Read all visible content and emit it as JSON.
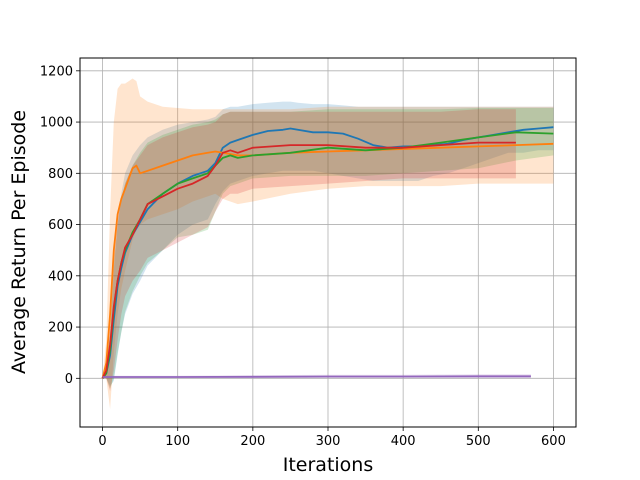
{
  "chart_data": {
    "type": "line",
    "title": "",
    "xlabel": "Iterations",
    "ylabel": "Average Return Per Episode",
    "xlim": [
      -30,
      630
    ],
    "ylim": [
      -190,
      1250
    ],
    "xticks": [
      0,
      100,
      200,
      300,
      400,
      500,
      600
    ],
    "yticks": [
      0,
      200,
      400,
      600,
      800,
      1000,
      1200
    ],
    "grid": true,
    "legend": "none",
    "series": [
      {
        "color": "#1f77b4",
        "x": [
          0,
          5,
          10,
          15,
          20,
          25,
          30,
          40,
          50,
          60,
          80,
          100,
          120,
          140,
          150,
          160,
          170,
          180,
          200,
          220,
          240,
          250,
          260,
          280,
          300,
          320,
          340,
          360,
          380,
          400,
          420,
          440,
          460,
          480,
          500,
          520,
          540,
          560,
          580,
          600
        ],
        "y": [
          0,
          20,
          90,
          230,
          360,
          430,
          490,
          560,
          610,
          660,
          720,
          760,
          790,
          810,
          840,
          900,
          920,
          930,
          950,
          965,
          970,
          975,
          970,
          960,
          960,
          955,
          935,
          910,
          900,
          905,
          905,
          910,
          915,
          930,
          940,
          950,
          960,
          970,
          975,
          980
        ],
        "lower": [
          0,
          0,
          -30,
          -10,
          90,
          180,
          250,
          330,
          380,
          440,
          500,
          560,
          600,
          620,
          680,
          730,
          760,
          770,
          790,
          800,
          810,
          810,
          810,
          810,
          800,
          790,
          780,
          770,
          770,
          770,
          770,
          790,
          800,
          820,
          840,
          860,
          880,
          880,
          890,
          890
        ],
        "upper": [
          0,
          50,
          170,
          420,
          600,
          720,
          800,
          870,
          910,
          940,
          970,
          990,
          1000,
          1010,
          1020,
          1050,
          1060,
          1060,
          1070,
          1075,
          1080,
          1080,
          1075,
          1070,
          1070,
          1065,
          1060,
          1060,
          1060,
          1060,
          1060,
          1060,
          1060,
          1060,
          1060,
          1060,
          1060,
          1060,
          1060,
          1060
        ]
      },
      {
        "color": "#ff7f0e",
        "x": [
          0,
          5,
          10,
          15,
          20,
          25,
          30,
          35,
          40,
          45,
          50,
          60,
          80,
          100,
          120,
          140,
          150,
          160,
          180,
          200,
          250,
          300,
          350,
          400,
          450,
          500,
          550,
          600
        ],
        "y": [
          0,
          60,
          250,
          500,
          640,
          700,
          740,
          780,
          820,
          830,
          800,
          810,
          830,
          850,
          870,
          880,
          885,
          880,
          870,
          870,
          880,
          885,
          890,
          895,
          900,
          905,
          910,
          915
        ],
        "lower": [
          0,
          0,
          -120,
          100,
          250,
          350,
          420,
          480,
          540,
          580,
          600,
          620,
          640,
          660,
          690,
          710,
          720,
          700,
          680,
          690,
          720,
          740,
          750,
          750,
          750,
          760,
          760,
          760
        ],
        "upper": [
          0,
          150,
          650,
          1000,
          1130,
          1150,
          1150,
          1160,
          1170,
          1160,
          1100,
          1080,
          1060,
          1055,
          1050,
          1050,
          1050,
          1050,
          1050,
          1050,
          1050,
          1060,
          1060,
          1060,
          1060,
          1060,
          1060,
          1060
        ]
      },
      {
        "color": "#2ca02c",
        "x": [
          0,
          5,
          10,
          15,
          20,
          25,
          30,
          40,
          50,
          60,
          80,
          100,
          120,
          140,
          150,
          160,
          170,
          180,
          200,
          250,
          300,
          350,
          400,
          450,
          500,
          550,
          600
        ],
        "y": [
          0,
          20,
          110,
          270,
          380,
          450,
          500,
          570,
          620,
          680,
          720,
          760,
          780,
          800,
          830,
          860,
          870,
          860,
          870,
          880,
          900,
          890,
          900,
          920,
          940,
          960,
          955
        ],
        "lower": [
          0,
          0,
          -40,
          0,
          100,
          180,
          260,
          340,
          400,
          450,
          500,
          550,
          560,
          580,
          650,
          720,
          750,
          760,
          780,
          790,
          790,
          790,
          800,
          810,
          820,
          850,
          870
        ],
        "upper": [
          0,
          50,
          180,
          450,
          600,
          700,
          760,
          830,
          880,
          920,
          950,
          970,
          990,
          1000,
          1010,
          1030,
          1040,
          1040,
          1040,
          1040,
          1050,
          1050,
          1050,
          1050,
          1055,
          1055,
          1055
        ]
      },
      {
        "color": "#d62728",
        "x": [
          0,
          5,
          10,
          15,
          20,
          25,
          30,
          40,
          50,
          60,
          80,
          100,
          120,
          140,
          150,
          160,
          170,
          180,
          200,
          250,
          300,
          350,
          400,
          450,
          500,
          550
        ],
        "y": [
          0,
          30,
          130,
          280,
          380,
          450,
          510,
          560,
          620,
          680,
          710,
          740,
          760,
          790,
          830,
          880,
          890,
          880,
          900,
          910,
          910,
          900,
          900,
          910,
          920,
          920
        ],
        "lower": [
          0,
          0,
          -50,
          30,
          150,
          250,
          320,
          380,
          420,
          470,
          500,
          530,
          560,
          590,
          650,
          700,
          720,
          720,
          740,
          750,
          760,
          770,
          780,
          780,
          780,
          780
        ],
        "upper": [
          0,
          60,
          200,
          480,
          620,
          700,
          760,
          830,
          870,
          910,
          940,
          960,
          980,
          990,
          1000,
          1030,
          1040,
          1040,
          1040,
          1040,
          1040,
          1040,
          1040,
          1040,
          1050,
          1050
        ]
      },
      {
        "color": "#9467bd",
        "x": [
          0,
          100,
          200,
          300,
          400,
          500,
          570
        ],
        "y": [
          5,
          5,
          6,
          7,
          7,
          8,
          8
        ],
        "lower": [
          0,
          0,
          0,
          0,
          0,
          0,
          0
        ],
        "upper": [
          10,
          10,
          12,
          14,
          14,
          16,
          16
        ]
      }
    ]
  }
}
